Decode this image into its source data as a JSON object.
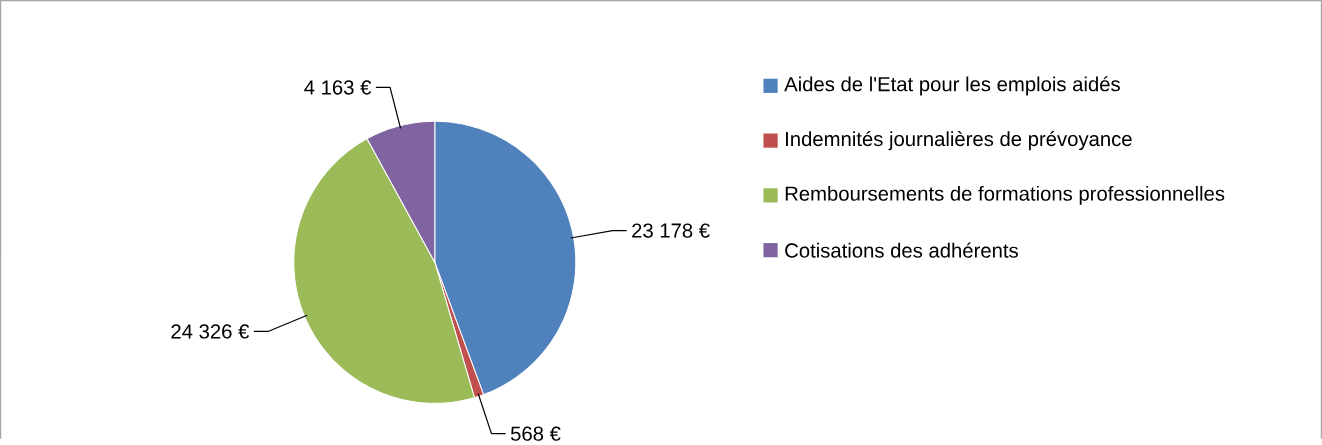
{
  "chart_data": {
    "type": "pie",
    "categories": [
      "Aides de l'Etat pour les emplois aidés",
      "Indemnités journalières de prévoyance",
      "Remboursements de formations professionnelles",
      "Cotisations des adhérents"
    ],
    "values": [
      23178,
      568,
      24326,
      4163
    ],
    "colors": [
      "#4f81bd",
      "#c0504d",
      "#9bbb59",
      "#8064a2"
    ],
    "value_labels": [
      "23 178 €",
      "568 €",
      "24 326 €",
      "4 163 €"
    ],
    "legend": "right"
  }
}
